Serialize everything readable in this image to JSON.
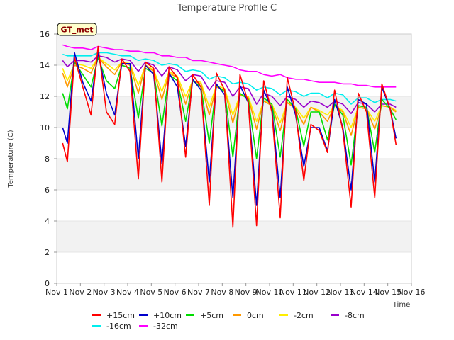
{
  "chart_data": {
    "type": "line",
    "title": "Temperature Profile C",
    "badge": "GT_met",
    "xlabel": "Time",
    "ylabel": "Temperature (C)",
    "ylim": [
      0,
      16
    ],
    "yticks": [
      0,
      2,
      4,
      6,
      8,
      10,
      12,
      14,
      16
    ],
    "xlim": [
      1,
      16
    ],
    "xtick_labels": [
      "Nov 1",
      "Nov 2",
      "Nov 3",
      "Nov 4",
      "Nov 5",
      "Nov 6",
      "Nov 7",
      "Nov 8",
      "Nov 9",
      "Nov 10",
      "Nov 11",
      "Nov 12",
      "Nov 13",
      "Nov 14",
      "Nov 15",
      "Nov 16"
    ],
    "grid": "horizontal bands",
    "legend_position": "bottom",
    "x": [
      1.25,
      1.45,
      1.75,
      2.1,
      2.45,
      2.75,
      3.1,
      3.45,
      3.75,
      4.1,
      4.45,
      4.75,
      5.1,
      5.45,
      5.75,
      6.1,
      6.45,
      6.75,
      7.1,
      7.45,
      7.75,
      8.1,
      8.45,
      8.75,
      9.1,
      9.45,
      9.75,
      10.1,
      10.45,
      10.75,
      11.1,
      11.45,
      11.75,
      12.1,
      12.45,
      12.75,
      13.1,
      13.45,
      13.75,
      14.1,
      14.45,
      14.75,
      15.1,
      15.35
    ],
    "series": [
      {
        "name": "+15cm",
        "color": "#ff0000",
        "values": [
          9.0,
          7.8,
          14.5,
          12.6,
          10.8,
          15.2,
          11.0,
          10.2,
          14.4,
          13.6,
          6.7,
          14.2,
          13.8,
          6.5,
          13.9,
          13.2,
          8.1,
          13.4,
          12.6,
          5.0,
          13.5,
          12.4,
          3.6,
          13.4,
          11.6,
          3.7,
          13.0,
          11.0,
          4.2,
          13.2,
          11.0,
          6.6,
          10.2,
          9.8,
          8.4,
          12.4,
          9.8,
          4.9,
          12.2,
          11.0,
          5.5,
          12.8,
          11.2,
          8.9
        ]
      },
      {
        "name": "+10cm",
        "color": "#0000cc",
        "values": [
          10.0,
          9.0,
          14.8,
          12.9,
          11.7,
          14.8,
          12.2,
          10.8,
          14.1,
          14.1,
          8.0,
          14.0,
          13.4,
          7.7,
          13.5,
          12.6,
          8.8,
          13.1,
          12.4,
          6.5,
          12.8,
          12.1,
          5.5,
          12.7,
          11.6,
          5.0,
          12.4,
          11.2,
          5.5,
          12.6,
          10.8,
          7.5,
          10.0,
          10.0,
          8.5,
          11.8,
          10.0,
          6.0,
          11.8,
          11.5,
          6.5,
          12.6,
          11.2,
          9.3
        ]
      },
      {
        "name": "+5cm",
        "color": "#00dd00",
        "values": [
          12.2,
          11.2,
          14.2,
          13.4,
          12.6,
          14.5,
          13.0,
          12.5,
          14.0,
          13.8,
          10.6,
          13.8,
          13.5,
          10.1,
          13.4,
          13.0,
          10.4,
          13.0,
          12.6,
          9.0,
          12.7,
          12.3,
          8.1,
          12.2,
          11.8,
          8.0,
          11.9,
          11.5,
          8.1,
          11.8,
          11.2,
          8.8,
          11.0,
          11.0,
          9.2,
          11.5,
          10.8,
          7.6,
          11.4,
          11.3,
          8.4,
          11.8,
          11.2,
          10.5
        ]
      },
      {
        "name": "0cm",
        "color": "#ff9900",
        "values": [
          13.5,
          12.6,
          14.0,
          13.8,
          13.5,
          14.5,
          13.9,
          13.4,
          14.2,
          14.0,
          12.2,
          14.0,
          13.6,
          11.8,
          13.5,
          13.2,
          11.5,
          13.0,
          12.8,
          10.8,
          12.6,
          12.4,
          10.3,
          12.1,
          11.9,
          9.9,
          11.7,
          11.4,
          9.8,
          11.6,
          11.2,
          10.2,
          11.3,
          11.0,
          10.4,
          11.4,
          11.0,
          9.5,
          11.3,
          11.2,
          9.9,
          11.4,
          11.3,
          11.0
        ]
      },
      {
        "name": "-2cm",
        "color": "#ffee00",
        "values": [
          13.8,
          13.0,
          14.1,
          14.0,
          13.8,
          14.5,
          14.1,
          13.7,
          14.2,
          14.1,
          12.7,
          14.0,
          13.7,
          12.3,
          13.6,
          13.3,
          12.0,
          13.0,
          12.9,
          11.3,
          12.7,
          12.5,
          10.8,
          12.1,
          12.0,
          10.4,
          11.7,
          11.5,
          10.3,
          11.6,
          11.3,
          10.6,
          11.3,
          11.1,
          10.8,
          11.4,
          11.1,
          10.0,
          11.3,
          11.2,
          10.4,
          11.4,
          11.3,
          11.1
        ]
      },
      {
        "name": "-8cm",
        "color": "#9900cc",
        "values": [
          14.3,
          13.9,
          14.3,
          14.3,
          14.2,
          14.6,
          14.5,
          14.2,
          14.4,
          14.3,
          13.6,
          14.2,
          14.0,
          13.3,
          13.9,
          13.7,
          13.0,
          13.4,
          13.3,
          12.4,
          13.0,
          12.9,
          12.0,
          12.6,
          12.5,
          11.5,
          12.2,
          12.0,
          11.4,
          12.0,
          11.8,
          11.3,
          11.7,
          11.6,
          11.3,
          11.7,
          11.5,
          10.9,
          11.6,
          11.5,
          11.0,
          11.5,
          11.5,
          11.3
        ]
      },
      {
        "name": "-16cm",
        "color": "#00eeee",
        "values": [
          14.7,
          14.6,
          14.6,
          14.6,
          14.6,
          14.8,
          14.8,
          14.7,
          14.6,
          14.6,
          14.3,
          14.4,
          14.3,
          14.0,
          14.1,
          14.0,
          13.6,
          13.7,
          13.6,
          13.1,
          13.3,
          13.2,
          12.8,
          12.9,
          12.8,
          12.4,
          12.6,
          12.5,
          12.1,
          12.4,
          12.3,
          12.0,
          12.2,
          12.2,
          11.9,
          12.2,
          12.1,
          11.5,
          11.9,
          11.9,
          11.6,
          11.8,
          11.8,
          11.7
        ]
      },
      {
        "name": "-32cm",
        "color": "#ff00ff",
        "values": [
          15.3,
          15.2,
          15.1,
          15.1,
          15.0,
          15.2,
          15.1,
          15.0,
          15.0,
          14.9,
          14.9,
          14.8,
          14.8,
          14.6,
          14.6,
          14.5,
          14.5,
          14.3,
          14.3,
          14.2,
          14.1,
          14.0,
          13.9,
          13.7,
          13.6,
          13.6,
          13.4,
          13.3,
          13.4,
          13.2,
          13.1,
          13.1,
          13.0,
          12.9,
          12.9,
          12.9,
          12.8,
          12.8,
          12.7,
          12.7,
          12.6,
          12.6,
          12.6,
          12.6
        ]
      }
    ]
  }
}
